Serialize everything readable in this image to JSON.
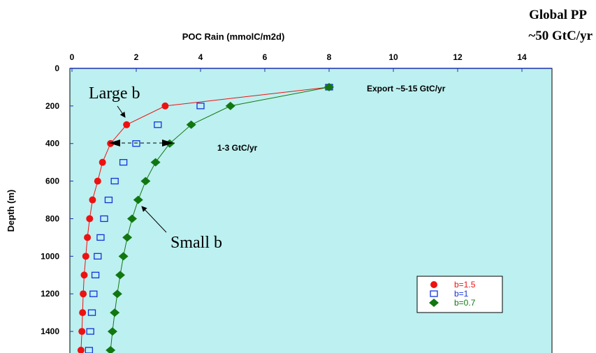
{
  "chart_data": {
    "type": "scatter",
    "title": "",
    "xlabel": "POC Rain (mmolC/m2d)",
    "ylabel": "Depth (m)",
    "xlim": [
      0,
      15
    ],
    "ylim": [
      0,
      1500
    ],
    "y_inverted": true,
    "x_axis_position": "top",
    "x_ticks": [
      0,
      2,
      4,
      6,
      8,
      10,
      12,
      14
    ],
    "y_ticks": [
      0,
      200,
      400,
      600,
      800,
      1000,
      1200,
      1400
    ],
    "x_tick_labels": [
      "0",
      "2",
      "4",
      "6",
      "8",
      "10",
      "12",
      "14"
    ],
    "y_tick_labels": [
      "0",
      "200",
      "400",
      "600",
      "800",
      "1000",
      "1200",
      "1400"
    ],
    "grid": false,
    "background_color": "#bdf0f0",
    "legend_placement": "bottom-right",
    "series": [
      {
        "name": "b=1.5",
        "color": "#ee1111",
        "marker": "circle",
        "has_line": true,
        "x": [
          8.0,
          2.9,
          1.7,
          1.2,
          0.95,
          0.8,
          0.64,
          0.55,
          0.48,
          0.43,
          0.38,
          0.35,
          0.33,
          0.31,
          0.28
        ],
        "y": [
          100,
          200,
          300,
          400,
          500,
          600,
          700,
          800,
          900,
          1000,
          1100,
          1200,
          1300,
          1400,
          1500
        ]
      },
      {
        "name": "b=1",
        "color": "#1133dd",
        "marker": "open-square",
        "has_line": false,
        "x": [
          8.0,
          4.0,
          2.67,
          2.0,
          1.6,
          1.33,
          1.14,
          1.0,
          0.89,
          0.8,
          0.73,
          0.67,
          0.62,
          0.57,
          0.53
        ],
        "y": [
          100,
          200,
          300,
          400,
          500,
          600,
          700,
          800,
          900,
          1000,
          1100,
          1200,
          1300,
          1400,
          1500
        ]
      },
      {
        "name": "b=0.7",
        "color": "#117711",
        "marker": "diamond",
        "has_line": true,
        "x": [
          8.0,
          4.93,
          3.71,
          3.04,
          2.6,
          2.29,
          2.06,
          1.87,
          1.72,
          1.6,
          1.5,
          1.41,
          1.33,
          1.26,
          1.2
        ],
        "y": [
          100,
          200,
          300,
          400,
          500,
          600,
          700,
          800,
          900,
          1000,
          1100,
          1200,
          1300,
          1400,
          1500
        ]
      }
    ],
    "annotations": {
      "global_pp_line1": "Global PP",
      "global_pp_line2": "~50 GtC/yr",
      "export": "Export ~5-15 GtC/yr",
      "large_b": "Large b",
      "small_b": "Small b",
      "transfer": "1-3 GtC/yr"
    }
  }
}
